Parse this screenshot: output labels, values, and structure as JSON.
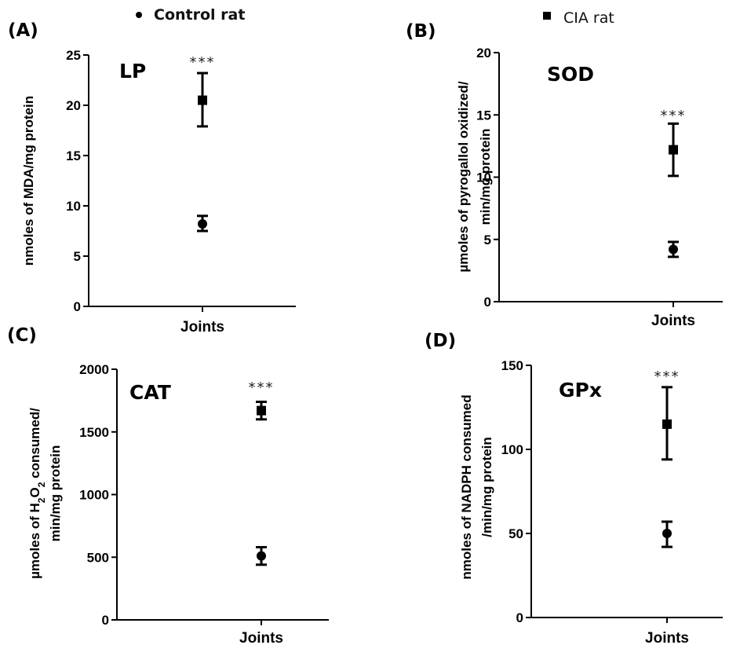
{
  "legend": {
    "control": "Control rat",
    "cia": "CIA  rat"
  },
  "chart_data": [
    {
      "type": "scatter",
      "panel_label": "(A)",
      "title": "LP",
      "xlabel": "Joints",
      "ylabel_lines": [
        "nmoles of MDA/mg protein"
      ],
      "ylim": [
        0,
        25
      ],
      "yticks": [
        "0",
        "5",
        "10",
        "15",
        "20",
        "25"
      ],
      "significance": "***",
      "series": [
        {
          "name": "Control rat",
          "marker": "circle",
          "x": "Joints",
          "y": 8.2,
          "err_low": 7.5,
          "err_high": 9.0
        },
        {
          "name": "CIA rat",
          "marker": "square",
          "x": "Joints",
          "y": 20.5,
          "err_low": 17.9,
          "err_high": 23.2
        }
      ]
    },
    {
      "type": "scatter",
      "panel_label": "(B)",
      "title": "SOD",
      "xlabel": "Joints",
      "ylabel_lines": [
        "µmoles of pyrogallol oxidized/",
        "min/mg protein"
      ],
      "ylim": [
        0,
        20
      ],
      "yticks": [
        "0",
        "5",
        "10",
        "15",
        "20"
      ],
      "significance": "***",
      "series": [
        {
          "name": "Control rat",
          "marker": "circle",
          "x": "Joints",
          "y": 4.2,
          "err_low": 3.6,
          "err_high": 4.8
        },
        {
          "name": "CIA rat",
          "marker": "square",
          "x": "Joints",
          "y": 12.2,
          "err_low": 10.1,
          "err_high": 14.3
        }
      ]
    },
    {
      "type": "scatter",
      "panel_label": "(C)",
      "title": "CAT",
      "xlabel": "Joints",
      "ylabel_prefix": "µmoles of H",
      "ylabel_sub1": "2",
      "ylabel_mid": "O",
      "ylabel_sub2": "2",
      "ylabel_suffix": " consumed/",
      "ylabel_line2": "min/mg protein",
      "ylim": [
        0,
        2000
      ],
      "yticks": [
        "0",
        "500",
        "1000",
        "1500",
        "2000"
      ],
      "significance": "***",
      "series": [
        {
          "name": "Control rat",
          "marker": "circle",
          "x": "Joints",
          "y": 510,
          "err_low": 440,
          "err_high": 580
        },
        {
          "name": "CIA rat",
          "marker": "square",
          "x": "Joints",
          "y": 1670,
          "err_low": 1600,
          "err_high": 1740
        }
      ]
    },
    {
      "type": "scatter",
      "panel_label": "(D)",
      "title": "GPx",
      "xlabel": "Joints",
      "ylabel_lines": [
        "nmoles of NADPH consumed",
        "/min/mg protein"
      ],
      "ylim": [
        0,
        150
      ],
      "yticks": [
        "0",
        "50",
        "100",
        "150"
      ],
      "significance": "***",
      "series": [
        {
          "name": "Control rat",
          "marker": "circle",
          "x": "Joints",
          "y": 50,
          "err_low": 42,
          "err_high": 57
        },
        {
          "name": "CIA rat",
          "marker": "square",
          "x": "Joints",
          "y": 115,
          "err_low": 94,
          "err_high": 137
        }
      ]
    }
  ]
}
